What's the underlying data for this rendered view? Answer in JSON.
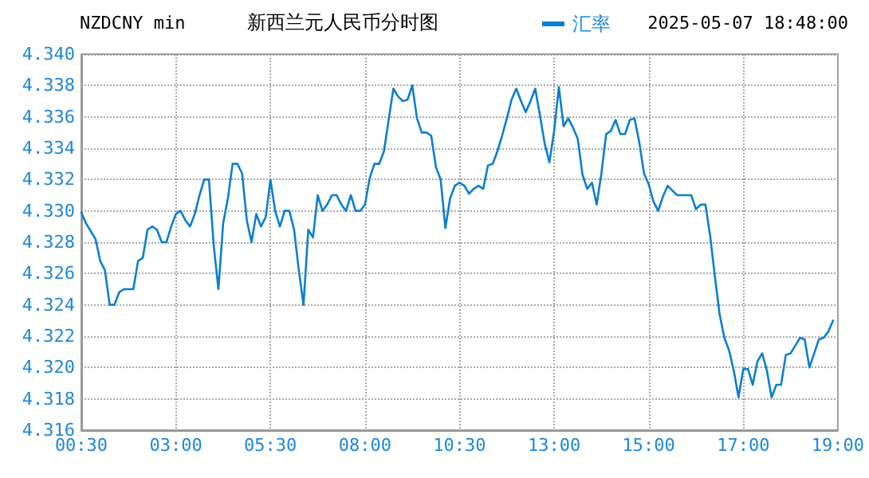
{
  "chart_data": {
    "type": "line",
    "title": "NZDCNY min",
    "subtitle": "新西兰元人民币分时图",
    "annotations": [
      "2025-05-07 18:48:00"
    ],
    "categories": [
      "00:30",
      null,
      null,
      null,
      null,
      null,
      null,
      null,
      null,
      null,
      null,
      null,
      null,
      null,
      null,
      null,
      null,
      null,
      null,
      null,
      "03:00",
      null,
      null,
      null,
      null,
      null,
      null,
      null,
      null,
      null,
      null,
      null,
      null,
      null,
      null,
      null,
      null,
      null,
      null,
      null,
      "05:30",
      null,
      null,
      null,
      null,
      null,
      null,
      null,
      null,
      null,
      null,
      null,
      null,
      null,
      null,
      null,
      null,
      null,
      null,
      null,
      "08:00",
      null,
      null,
      null,
      null,
      null,
      null,
      null,
      null,
      null,
      null,
      null,
      null,
      null,
      null,
      null,
      null,
      null,
      null,
      null,
      "10:30",
      null,
      null,
      null,
      null,
      null,
      null,
      null,
      null,
      null,
      null,
      null,
      null,
      null,
      null,
      null,
      null,
      null,
      null,
      null,
      "13:00",
      null,
      null,
      null,
      null,
      null,
      null,
      null,
      null,
      null,
      null,
      null,
      null,
      null,
      null,
      null,
      null,
      null,
      null,
      null,
      "15:00",
      null,
      null,
      null,
      null,
      null,
      null,
      null,
      null,
      null,
      null,
      null,
      null,
      null,
      null,
      null,
      null,
      null,
      null,
      null,
      "17:00",
      null,
      null,
      null,
      null,
      null,
      null,
      null,
      null,
      null,
      null,
      null,
      null,
      null,
      null,
      null,
      null,
      null,
      null,
      null,
      "19:00"
    ],
    "series": [
      {
        "name": "汇率",
        "color": "#0a7fd0",
        "values": [
          4.3299,
          4.3292,
          4.3287,
          4.3282,
          4.3268,
          4.3262,
          4.324,
          4.324,
          4.3248,
          4.325,
          4.325,
          4.325,
          4.3268,
          4.327,
          4.3288,
          4.329,
          4.3288,
          4.328,
          4.328,
          4.329,
          4.3298,
          4.33,
          4.3294,
          4.329,
          4.3298,
          4.331,
          4.332,
          4.332,
          4.3278,
          4.325,
          4.3292,
          4.3308,
          4.333,
          4.333,
          4.3324,
          4.3294,
          4.328,
          4.3298,
          4.329,
          4.3296,
          4.332,
          4.33,
          4.329,
          4.33,
          4.33,
          4.3288,
          4.3262,
          4.324,
          4.3288,
          4.3283,
          4.331,
          4.33,
          4.3304,
          4.331,
          4.331,
          4.3304,
          4.33,
          4.331,
          4.33,
          4.33,
          4.3304,
          4.3321,
          4.333,
          4.333,
          4.3338,
          4.3358,
          4.3378,
          4.3373,
          4.337,
          4.3371,
          4.338,
          4.3359,
          4.335,
          4.335,
          4.3348,
          4.3328,
          4.332,
          4.3289,
          4.3308,
          4.3316,
          4.3318,
          4.3316,
          4.3311,
          4.3314,
          4.3316,
          4.3314,
          4.3329,
          4.333,
          4.3338,
          4.3348,
          4.3359,
          4.3371,
          4.3378,
          4.337,
          4.3363,
          4.337,
          4.3378,
          4.3361,
          4.3343,
          4.3331,
          4.3351,
          4.3379,
          4.3354,
          4.3359,
          4.3353,
          4.3346,
          4.3323,
          4.3314,
          4.3318,
          4.3304,
          4.3324,
          4.3349,
          4.3351,
          4.3358,
          4.3349,
          4.3349,
          4.3358,
          4.3359,
          4.3344,
          4.3324,
          4.3317,
          4.3306,
          4.33,
          4.3309,
          4.3316,
          4.3313,
          4.331,
          4.331,
          4.331,
          4.331,
          4.3301,
          4.3304,
          4.3304,
          4.3284,
          4.3258,
          4.3234,
          4.3219,
          4.3211,
          4.3198,
          4.3181,
          4.3199,
          4.3199,
          4.3189,
          4.3204,
          4.3209,
          4.3198,
          4.3181,
          4.3189,
          4.3189,
          4.3208,
          4.3209,
          4.3214,
          4.3219,
          4.3218,
          4.32,
          4.3209,
          4.3218,
          4.3219,
          4.3223,
          4.323,
          null
        ]
      }
    ],
    "ylim": [
      4.316,
      4.34
    ],
    "yticks": [
      {
        "value": 4.316,
        "label": "4.316"
      },
      {
        "value": 4.318,
        "label": "4.318"
      },
      {
        "value": 4.32,
        "label": "4.320"
      },
      {
        "value": 4.322,
        "label": "4.322"
      },
      {
        "value": 4.324,
        "label": "4.324"
      },
      {
        "value": 4.326,
        "label": "4.326"
      },
      {
        "value": 4.328,
        "label": "4.328"
      },
      {
        "value": 4.33,
        "label": "4.330"
      },
      {
        "value": 4.332,
        "label": "4.332"
      },
      {
        "value": 4.334,
        "label": "4.334"
      },
      {
        "value": 4.336,
        "label": "4.336"
      },
      {
        "value": 4.338,
        "label": "4.338"
      },
      {
        "value": 4.34,
        "label": "4.340"
      }
    ],
    "grid": true,
    "legend": "top",
    "marker": "none",
    "line_style": "solid"
  }
}
